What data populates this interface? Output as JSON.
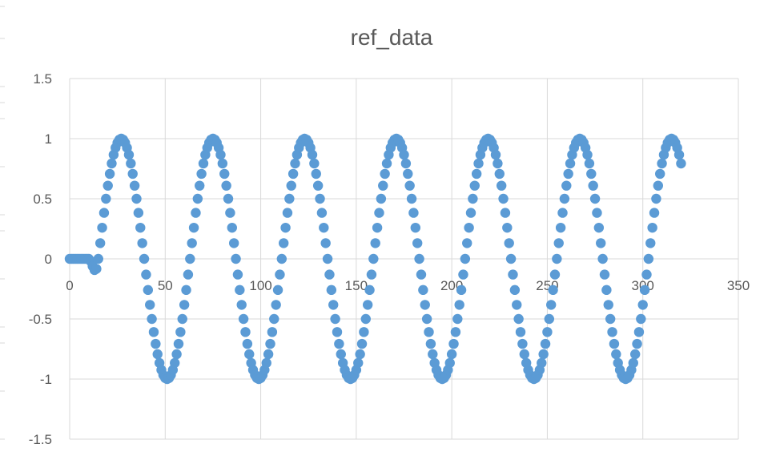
{
  "chart_data": {
    "type": "scatter",
    "title": "ref_data",
    "xlabel": "",
    "ylabel": "",
    "xlim": [
      0,
      350
    ],
    "ylim": [
      -1.5,
      1.5
    ],
    "x_ticks": [
      "0",
      "50",
      "100",
      "150",
      "200",
      "250",
      "300",
      "350"
    ],
    "y_ticks": [
      "1.5",
      "1",
      "0.5",
      "0",
      "-0.5",
      "-1",
      "-1.5"
    ],
    "grid": true,
    "legend": "none",
    "series": [
      {
        "marker": "circle",
        "color": "#5b9bd5",
        "x_start": 0,
        "x_end": 320,
        "x_step": 1,
        "zero_until_x": 10,
        "ramp_end_x": 15,
        "period_x": 48,
        "first_peak_x": 27,
        "amplitude": 1
      }
    ]
  }
}
